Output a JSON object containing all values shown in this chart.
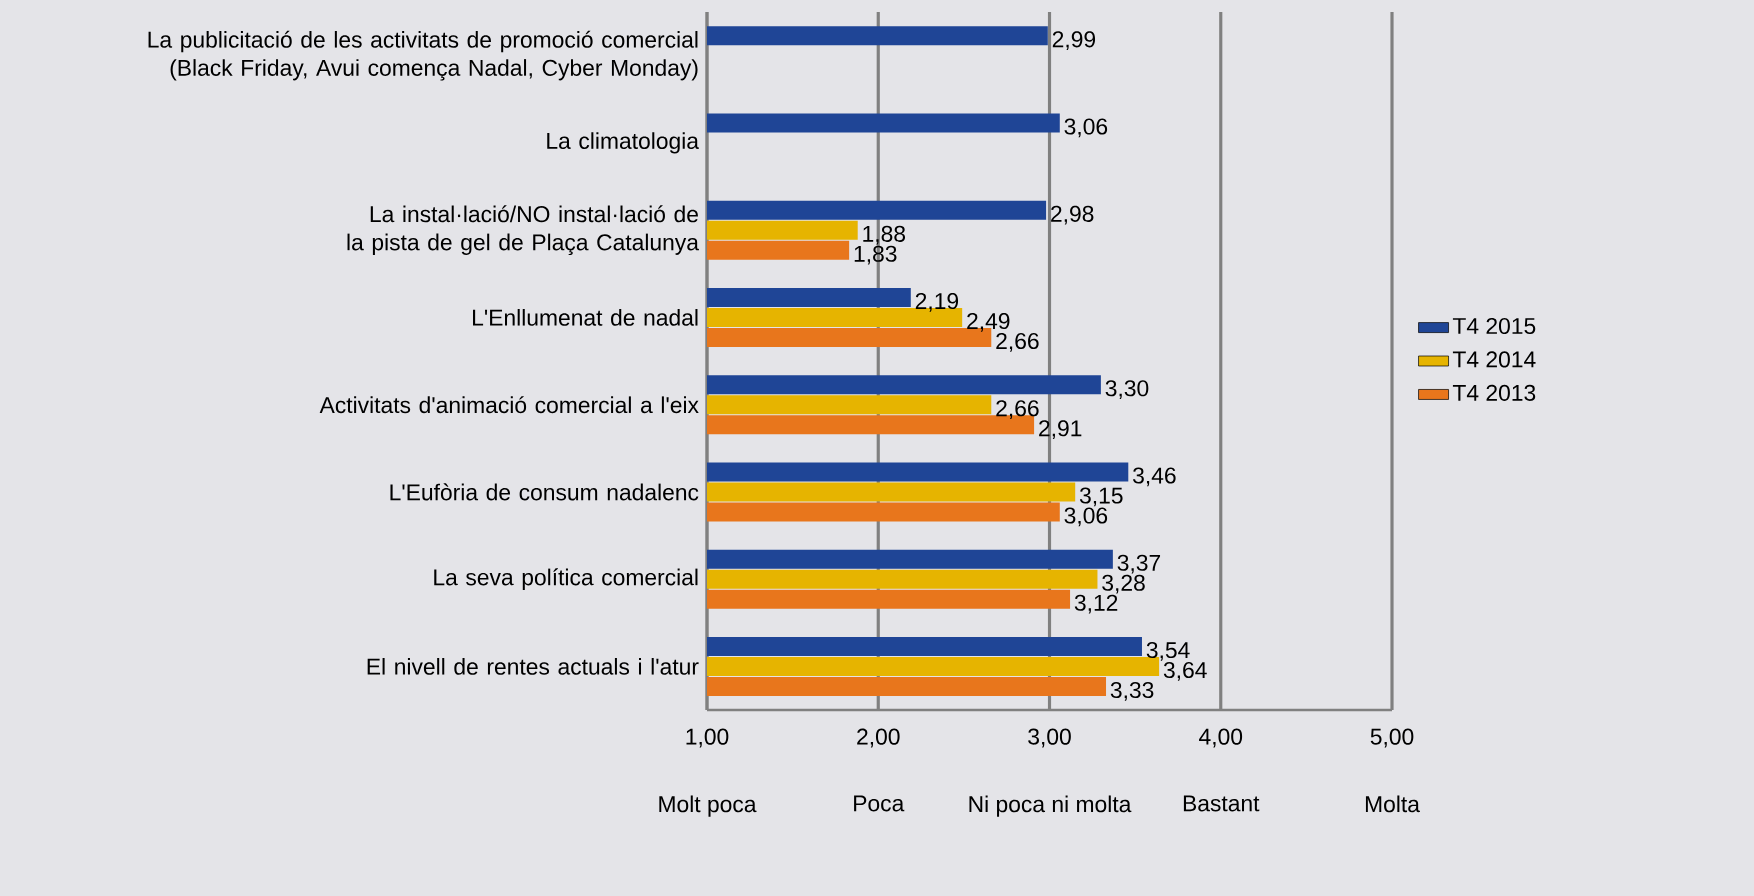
{
  "chart_data": {
    "type": "bar",
    "orientation": "horizontal",
    "categories": [
      "La publicitació de les activitats de promoció comercial (Black Friday, Avui comença Nadal, Cyber Monday)",
      "La climatologia",
      "La instal·lació/NO instal·lació de la pista de gel de Plaça Catalunya",
      "L'Enllumenat de nadal",
      "Activitats d'animació comercial a l'eix",
      "L'Eufòria de consum nadalenc",
      "La seva política comercial",
      "El nivell de rentes actuals i l'atur"
    ],
    "series": [
      {
        "name": "T4 2015",
        "color": "#1f4596",
        "values": [
          2.99,
          3.06,
          2.98,
          2.19,
          3.3,
          3.46,
          3.37,
          3.54
        ],
        "value_labels": [
          "2,99",
          "3,06",
          "2,98",
          "2,19",
          "3,30",
          "3,46",
          "3,37",
          "3,54"
        ]
      },
      {
        "name": "T4 2014",
        "color": "#e6b400",
        "values": [
          null,
          null,
          1.88,
          2.49,
          2.66,
          3.15,
          3.28,
          3.64
        ],
        "value_labels": [
          null,
          null,
          "1,88",
          "2,49",
          "2,66",
          "3,15",
          "3,28",
          "3,64"
        ]
      },
      {
        "name": "T4 2013",
        "color": "#e8761c",
        "values": [
          null,
          null,
          1.83,
          2.66,
          2.91,
          3.06,
          3.12,
          3.33
        ],
        "value_labels": [
          null,
          null,
          "1,83",
          "2,66",
          "2,91",
          "3,06",
          "3,12",
          "3,33"
        ]
      }
    ],
    "xlim": [
      1,
      5
    ],
    "xticks": [
      {
        "value": 1,
        "label": "1,00"
      },
      {
        "value": 2,
        "label": "2,00"
      },
      {
        "value": 3,
        "label": "3,00"
      },
      {
        "value": 4,
        "label": "4,00"
      },
      {
        "value": 5,
        "label": "5,00"
      }
    ],
    "annotations": [
      "Molt poca",
      "Poca",
      "Ni poca ni molta",
      "Bastant",
      "Molta"
    ],
    "grid": "x",
    "legend": "right"
  }
}
